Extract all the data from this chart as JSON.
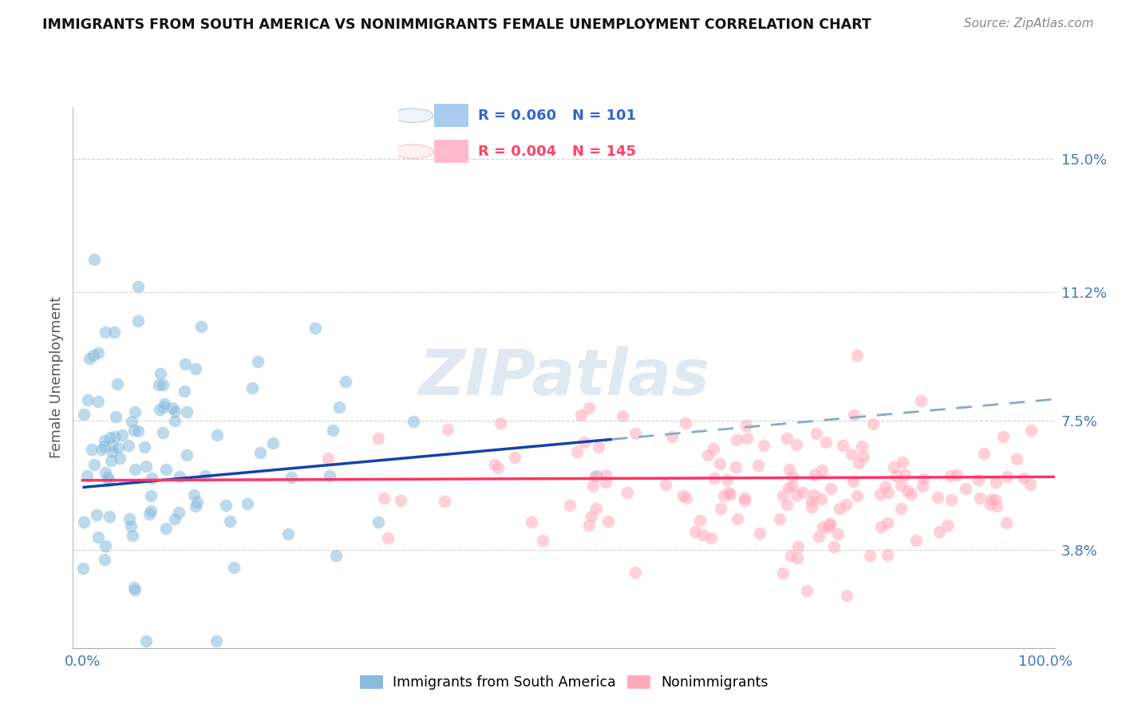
{
  "title": "IMMIGRANTS FROM SOUTH AMERICA VS NONIMMIGRANTS FEMALE UNEMPLOYMENT CORRELATION CHART",
  "source": "Source: ZipAtlas.com",
  "ylabel": "Female Unemployment",
  "xlim": [
    -0.01,
    1.01
  ],
  "ylim": [
    0.01,
    0.165
  ],
  "yticks": [
    0.038,
    0.075,
    0.112,
    0.15
  ],
  "ytick_labels": [
    "3.8%",
    "7.5%",
    "11.2%",
    "15.0%"
  ],
  "blue_fill": "#88BBDD",
  "pink_fill": "#FFAABC",
  "blue_trend_color": "#1144AA",
  "pink_trend_color": "#FF3366",
  "blue_dash_color": "#88AACC",
  "grid_color": "#CCCCCC",
  "axis_tick_color": "#4477BB",
  "ylabel_color": "#555555",
  "title_color": "#111111",
  "source_color": "#888888",
  "watermark_color": "#C8D8E8",
  "legend_text_blue": "#3366CC",
  "legend_text_pink": "#FF4466",
  "legend_blue_R": "R = 0.060",
  "legend_blue_N": "N = 101",
  "legend_pink_R": "R = 0.004",
  "legend_pink_N": "N = 145",
  "blue_N": 101,
  "pink_N": 145,
  "blue_seed": 12,
  "pink_seed": 55
}
